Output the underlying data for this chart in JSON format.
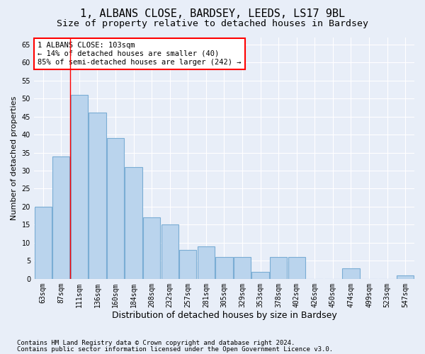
{
  "title1": "1, ALBANS CLOSE, BARDSEY, LEEDS, LS17 9BL",
  "title2": "Size of property relative to detached houses in Bardsey",
  "xlabel": "Distribution of detached houses by size in Bardsey",
  "ylabel": "Number of detached properties",
  "categories": [
    "63sqm",
    "87sqm",
    "111sqm",
    "136sqm",
    "160sqm",
    "184sqm",
    "208sqm",
    "232sqm",
    "257sqm",
    "281sqm",
    "305sqm",
    "329sqm",
    "353sqm",
    "378sqm",
    "402sqm",
    "426sqm",
    "450sqm",
    "474sqm",
    "499sqm",
    "523sqm",
    "547sqm"
  ],
  "values": [
    20,
    34,
    51,
    46,
    39,
    31,
    17,
    15,
    8,
    9,
    6,
    6,
    2,
    6,
    6,
    0,
    0,
    3,
    0,
    0,
    1
  ],
  "bar_color": "#bad4ed",
  "bar_edge_color": "#7aadd4",
  "bar_linewidth": 0.8,
  "background_color": "#e8eef8",
  "grid_color": "#ffffff",
  "annotation_box_text": "1 ALBANS CLOSE: 103sqm\n← 14% of detached houses are smaller (40)\n85% of semi-detached houses are larger (242) →",
  "annotation_box_color": "white",
  "annotation_box_edge_color": "red",
  "ylim": [
    0,
    67
  ],
  "yticks": [
    0,
    5,
    10,
    15,
    20,
    25,
    30,
    35,
    40,
    45,
    50,
    55,
    60,
    65
  ],
  "footer1": "Contains HM Land Registry data © Crown copyright and database right 2024.",
  "footer2": "Contains public sector information licensed under the Open Government Licence v3.0.",
  "title1_fontsize": 11,
  "title2_fontsize": 9.5,
  "xlabel_fontsize": 9,
  "ylabel_fontsize": 8,
  "annot_fontsize": 7.5,
  "tick_fontsize": 7,
  "footer_fontsize": 6.5
}
